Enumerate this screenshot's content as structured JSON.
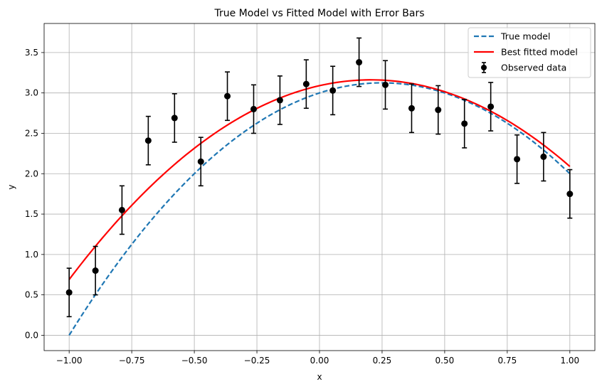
{
  "chart_data": {
    "type": "line",
    "title": "True Model vs Fitted Model with Error Bars",
    "xlabel": "x",
    "ylabel": "y",
    "xlim": [
      -1.1,
      1.1
    ],
    "ylim": [
      -0.19,
      3.86
    ],
    "xticks": [
      -1.0,
      -0.75,
      -0.5,
      -0.25,
      0.0,
      0.25,
      0.5,
      0.75,
      1.0
    ],
    "xtick_labels": [
      "−1.00",
      "−0.75",
      "−0.50",
      "−0.25",
      "0.00",
      "0.25",
      "0.50",
      "0.75",
      "1.00"
    ],
    "yticks": [
      0.0,
      0.5,
      1.0,
      1.5,
      2.0,
      2.5,
      3.0,
      3.5
    ],
    "ytick_labels": [
      "0.0",
      "0.5",
      "1.0",
      "1.5",
      "2.0",
      "2.5",
      "3.0",
      "3.5"
    ],
    "grid": true,
    "legend_position": "top-right",
    "series": [
      {
        "name": "True model",
        "kind": "line",
        "style": "dashed",
        "color": "#1f77b4",
        "model": {
          "form": "a*x^2 + b*x + c",
          "a": -2.0,
          "b": 1.0,
          "c": 3.0
        }
      },
      {
        "name": "Best fitted model",
        "kind": "line",
        "style": "solid",
        "color": "#ff0000",
        "model": {
          "form": "a*x^2 + b*x + c",
          "a": -1.7,
          "b": 0.7,
          "c": 3.09
        }
      },
      {
        "name": "Observed data",
        "kind": "errorbar",
        "color": "#000000",
        "x": [
          -1.0,
          -0.895,
          -0.789,
          -0.684,
          -0.579,
          -0.474,
          -0.368,
          -0.263,
          -0.158,
          -0.053,
          0.053,
          0.158,
          0.263,
          0.368,
          0.474,
          0.579,
          0.684,
          0.789,
          0.895,
          1.0
        ],
        "y": [
          0.53,
          0.8,
          1.55,
          2.41,
          2.69,
          2.15,
          2.96,
          2.8,
          2.91,
          3.11,
          3.03,
          3.38,
          3.1,
          2.81,
          2.79,
          2.62,
          2.83,
          2.18,
          2.21,
          1.75
        ],
        "yerr": 0.3
      }
    ]
  }
}
